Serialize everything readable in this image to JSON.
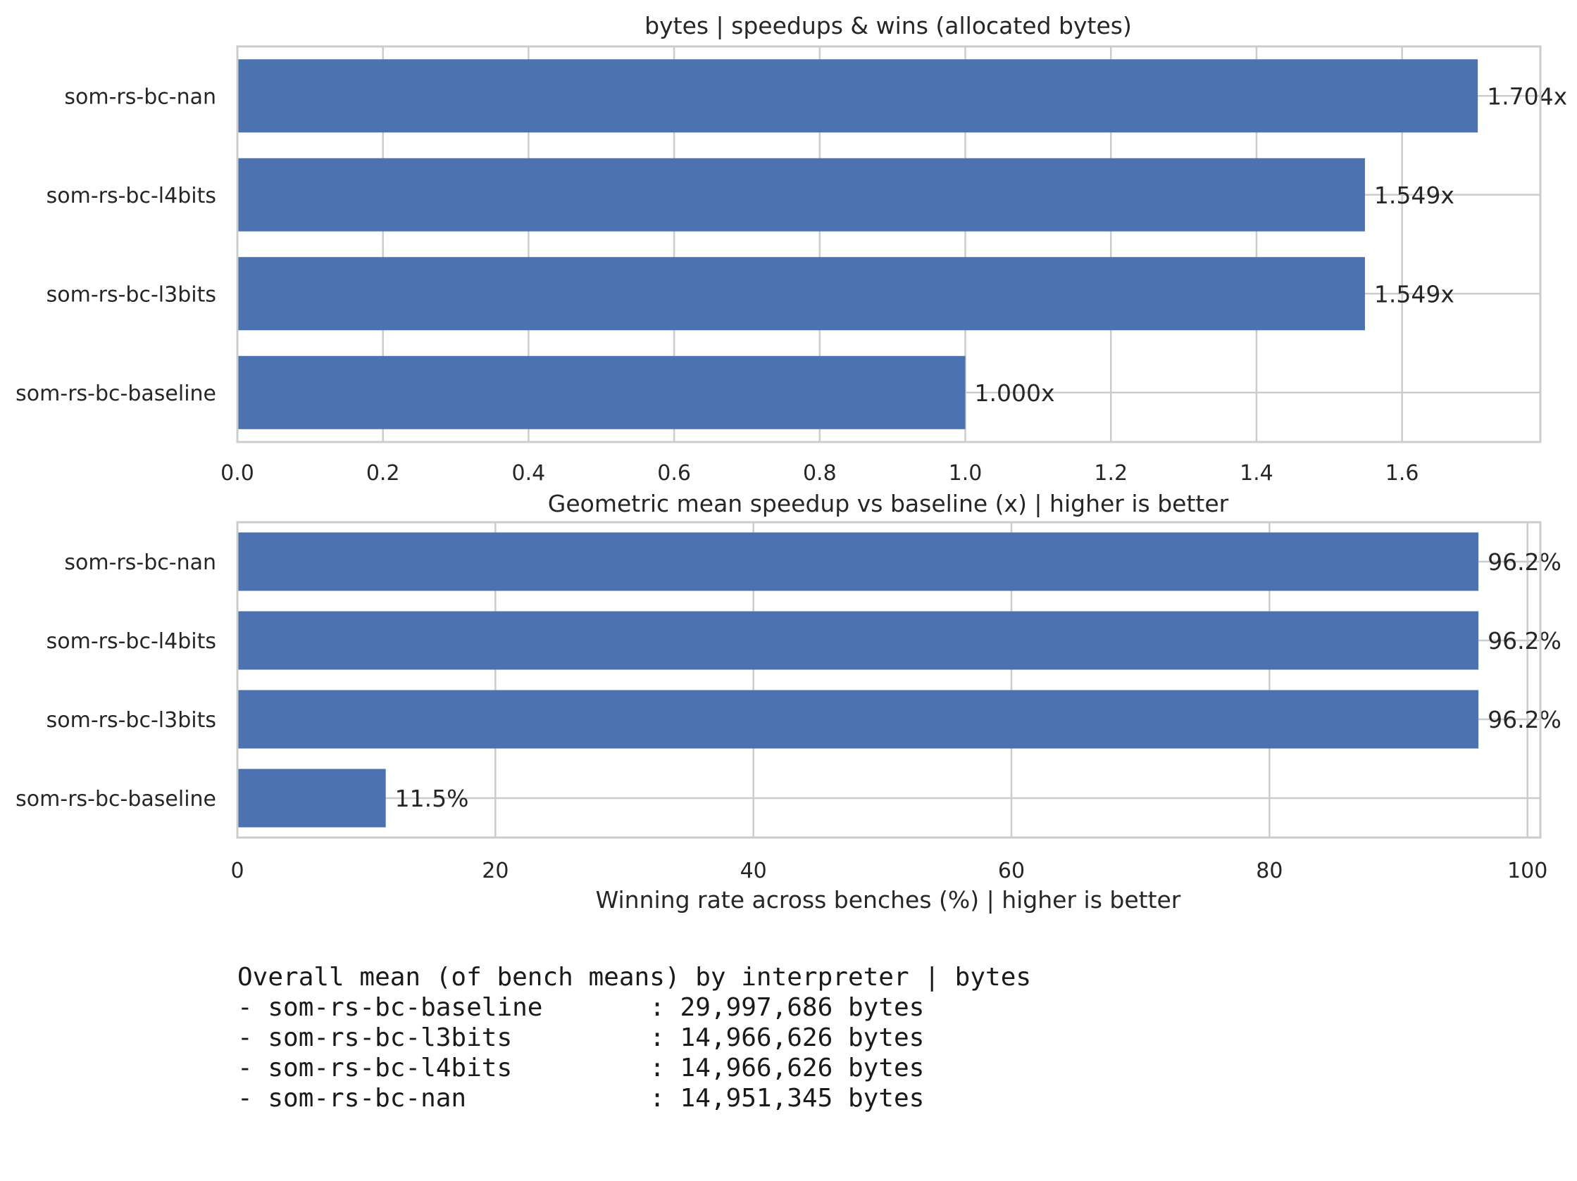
{
  "chart_data": [
    {
      "type": "bar",
      "orientation": "horizontal",
      "title": "bytes | speedups & wins (allocated bytes)",
      "xlabel": "Geometric mean speedup vs baseline (x) | higher is better",
      "categories": [
        "som-rs-bc-baseline",
        "som-rs-bc-l3bits",
        "som-rs-bc-l4bits",
        "som-rs-bc-nan"
      ],
      "values": [
        1.0,
        1.549,
        1.549,
        1.704
      ],
      "data_labels": [
        "1.000x",
        "1.549x",
        "1.549x",
        "1.704x"
      ],
      "xlim": [
        0,
        1.79
      ],
      "xticks": [
        0,
        0.2,
        0.4,
        0.6,
        0.8,
        1.0,
        1.2,
        1.4,
        1.6
      ],
      "xtick_labels": [
        "0.0",
        "0.2",
        "0.4",
        "0.6",
        "0.8",
        "1.0",
        "1.2",
        "1.4",
        "1.6"
      ],
      "bar_color": "#4c72b0",
      "grid": true
    },
    {
      "type": "bar",
      "orientation": "horizontal",
      "title": "",
      "xlabel": "Winning rate across benches (%) | higher is better",
      "categories": [
        "som-rs-bc-baseline",
        "som-rs-bc-l3bits",
        "som-rs-bc-l4bits",
        "som-rs-bc-nan"
      ],
      "values": [
        11.5,
        96.2,
        96.2,
        96.2
      ],
      "data_labels": [
        "11.5%",
        "96.2%",
        "96.2%",
        "96.2%"
      ],
      "xlim": [
        0,
        101
      ],
      "xticks": [
        0,
        20,
        40,
        60,
        80,
        100
      ],
      "xtick_labels": [
        "0",
        "20",
        "40",
        "60",
        "80",
        "100"
      ],
      "bar_color": "#4c72b0",
      "grid": true
    }
  ],
  "summary": {
    "heading": "Overall mean (of bench means) by interpreter | bytes",
    "lines": [
      "- som-rs-bc-baseline       : 29,997,686 bytes",
      "- som-rs-bc-l3bits         : 14,966,626 bytes",
      "- som-rs-bc-l4bits         : 14,966,626 bytes",
      "- som-rs-bc-nan            : 14,951,345 bytes"
    ]
  }
}
